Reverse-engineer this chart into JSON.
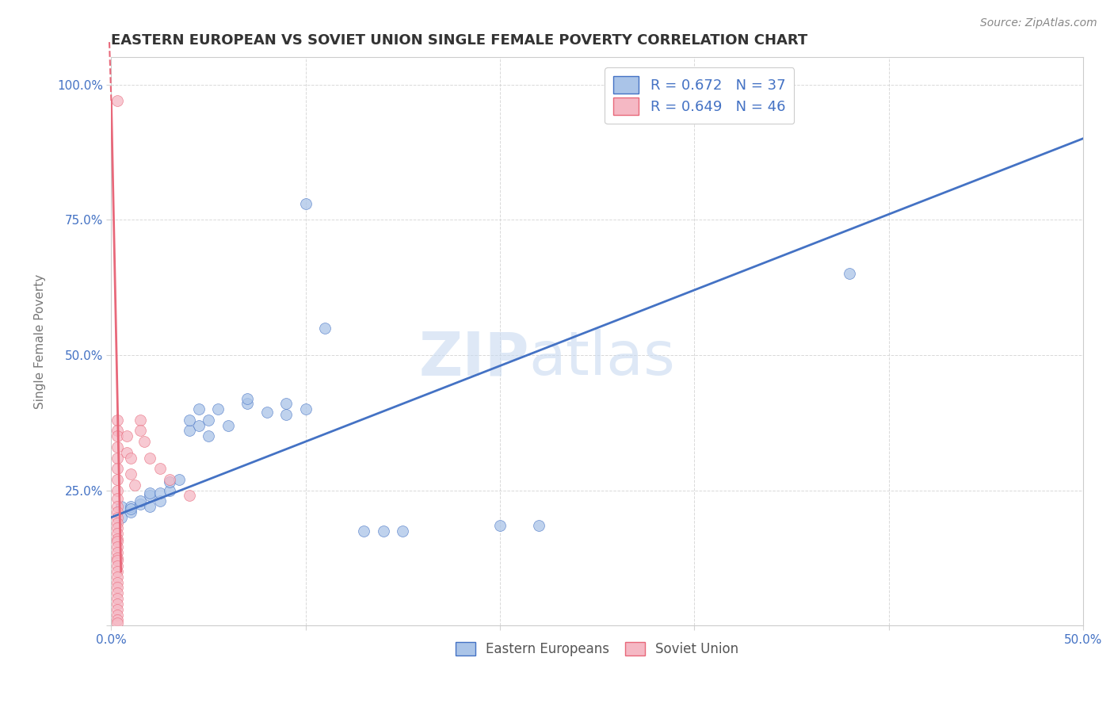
{
  "title": "EASTERN EUROPEAN VS SOVIET UNION SINGLE FEMALE POVERTY CORRELATION CHART",
  "source": "Source: ZipAtlas.com",
  "ylabel": "Single Female Poverty",
  "xlim": [
    0.0,
    0.5
  ],
  "ylim": [
    0.0,
    1.05
  ],
  "r_eastern": 0.672,
  "n_eastern": 37,
  "r_soviet": 0.649,
  "n_soviet": 46,
  "eastern_color": "#aac4e8",
  "soviet_color": "#f5b8c4",
  "trendline_eastern_color": "#4472c4",
  "trendline_soviet_color": "#e8687a",
  "watermark_color": "#c8daf0",
  "eastern_points": [
    [
      0.005,
      0.2
    ],
    [
      0.005,
      0.22
    ],
    [
      0.01,
      0.21
    ],
    [
      0.01,
      0.22
    ],
    [
      0.01,
      0.215
    ],
    [
      0.015,
      0.225
    ],
    [
      0.015,
      0.23
    ],
    [
      0.02,
      0.22
    ],
    [
      0.02,
      0.24
    ],
    [
      0.02,
      0.245
    ],
    [
      0.025,
      0.23
    ],
    [
      0.025,
      0.245
    ],
    [
      0.03,
      0.25
    ],
    [
      0.03,
      0.265
    ],
    [
      0.035,
      0.27
    ],
    [
      0.04,
      0.36
    ],
    [
      0.04,
      0.38
    ],
    [
      0.045,
      0.37
    ],
    [
      0.045,
      0.4
    ],
    [
      0.05,
      0.35
    ],
    [
      0.05,
      0.38
    ],
    [
      0.055,
      0.4
    ],
    [
      0.06,
      0.37
    ],
    [
      0.07,
      0.41
    ],
    [
      0.07,
      0.42
    ],
    [
      0.08,
      0.395
    ],
    [
      0.09,
      0.39
    ],
    [
      0.09,
      0.41
    ],
    [
      0.1,
      0.4
    ],
    [
      0.1,
      0.78
    ],
    [
      0.11,
      0.55
    ],
    [
      0.13,
      0.175
    ],
    [
      0.14,
      0.175
    ],
    [
      0.15,
      0.175
    ],
    [
      0.2,
      0.185
    ],
    [
      0.22,
      0.185
    ],
    [
      0.38,
      0.65
    ]
  ],
  "soviet_points": [
    [
      0.003,
      0.97
    ],
    [
      0.003,
      0.38
    ],
    [
      0.003,
      0.36
    ],
    [
      0.003,
      0.35
    ],
    [
      0.003,
      0.33
    ],
    [
      0.003,
      0.31
    ],
    [
      0.003,
      0.29
    ],
    [
      0.003,
      0.27
    ],
    [
      0.003,
      0.25
    ],
    [
      0.003,
      0.235
    ],
    [
      0.003,
      0.22
    ],
    [
      0.003,
      0.21
    ],
    [
      0.003,
      0.2
    ],
    [
      0.003,
      0.19
    ],
    [
      0.003,
      0.18
    ],
    [
      0.003,
      0.17
    ],
    [
      0.003,
      0.16
    ],
    [
      0.003,
      0.155
    ],
    [
      0.003,
      0.145
    ],
    [
      0.003,
      0.135
    ],
    [
      0.003,
      0.125
    ],
    [
      0.003,
      0.12
    ],
    [
      0.003,
      0.11
    ],
    [
      0.003,
      0.1
    ],
    [
      0.003,
      0.09
    ],
    [
      0.003,
      0.08
    ],
    [
      0.003,
      0.07
    ],
    [
      0.003,
      0.06
    ],
    [
      0.003,
      0.05
    ],
    [
      0.003,
      0.04
    ],
    [
      0.003,
      0.03
    ],
    [
      0.003,
      0.02
    ],
    [
      0.003,
      0.01
    ],
    [
      0.003,
      0.005
    ],
    [
      0.008,
      0.35
    ],
    [
      0.008,
      0.32
    ],
    [
      0.01,
      0.31
    ],
    [
      0.01,
      0.28
    ],
    [
      0.012,
      0.26
    ],
    [
      0.015,
      0.38
    ],
    [
      0.015,
      0.36
    ],
    [
      0.017,
      0.34
    ],
    [
      0.02,
      0.31
    ],
    [
      0.025,
      0.29
    ],
    [
      0.03,
      0.27
    ],
    [
      0.04,
      0.24
    ]
  ],
  "trendline_eastern": [
    [
      0.0,
      0.2
    ],
    [
      0.5,
      0.9
    ]
  ],
  "trendline_soviet": [
    [
      0.0,
      0.97
    ],
    [
      0.005,
      0.1
    ]
  ]
}
